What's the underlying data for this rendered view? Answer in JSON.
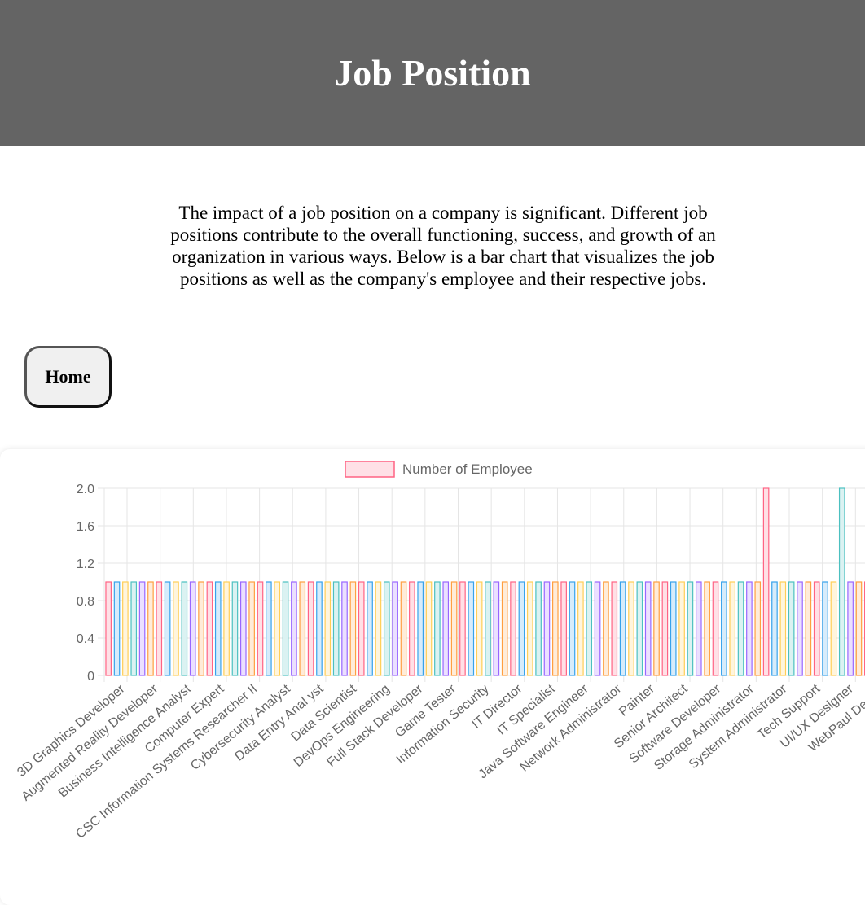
{
  "header": {
    "title": "Job Position"
  },
  "intro": {
    "text": "The impact of a job position on a company is significant. Different job positions contribute to the overall functioning, success, and growth of an organization in various ways. Below is a bar chart that visualizes the job positions as well as the company's employee and their respective jobs."
  },
  "nav": {
    "home_label": "Home"
  },
  "chart_data": {
    "type": "bar",
    "series": [
      {
        "name": "Number of Employee"
      }
    ],
    "legend_position": "top",
    "grid": true,
    "ylim": [
      0,
      2
    ],
    "yticks": [
      "2.0",
      "1.6",
      "1.2",
      "0.8",
      "0.4",
      "0"
    ],
    "bar_count": 91,
    "values": [
      1,
      1,
      1,
      1,
      1,
      1,
      1,
      1,
      1,
      1,
      1,
      1,
      1,
      1,
      1,
      1,
      1,
      1,
      1,
      1,
      1,
      1,
      1,
      1,
      1,
      1,
      1,
      1,
      1,
      1,
      1,
      1,
      1,
      1,
      1,
      1,
      1,
      1,
      1,
      1,
      1,
      1,
      1,
      1,
      1,
      1,
      1,
      1,
      1,
      1,
      1,
      1,
      1,
      1,
      1,
      1,
      1,
      1,
      1,
      1,
      1,
      1,
      1,
      1,
      1,
      1,
      1,
      1,
      1,
      1,
      1,
      1,
      1,
      1,
      1,
      1,
      1,
      1,
      2,
      1,
      1,
      1,
      1,
      1,
      1,
      1,
      1,
      2,
      1,
      1,
      1
    ],
    "x_labels": [
      "3D Graphics Developer",
      "Augmented Reality Developer",
      "Business Intelligence Analyst",
      "Computer Expert",
      "CSC Information Systems Researcher II",
      "Cybersecurity Analyst",
      "Data Entry Anal yst",
      "Data Scientist",
      "DevOps Engineering",
      "Full Stack Developer",
      "Game Tester",
      "Information Security",
      "IT Director",
      "IT Specialist",
      "Java Software Engineer",
      "Network Administrator",
      "Painter",
      "Senior Architect",
      "Software Developer",
      "Storage Administrator",
      "System Administrator",
      "Tech Support",
      "UI/UX Designer",
      "WebPaul Design"
    ],
    "colors": {
      "border": [
        "#ff6384",
        "#36a2eb",
        "#ffce56",
        "#4bc0c0",
        "#9966ff",
        "#ff9f40"
      ],
      "fill": [
        "#ffe0e6",
        "#d7ecfb",
        "#fff5dd",
        "#dbf2f2",
        "#ebe0ff",
        "#ffecd9"
      ],
      "grid": "#e5e5e5",
      "text": "#666666"
    }
  }
}
